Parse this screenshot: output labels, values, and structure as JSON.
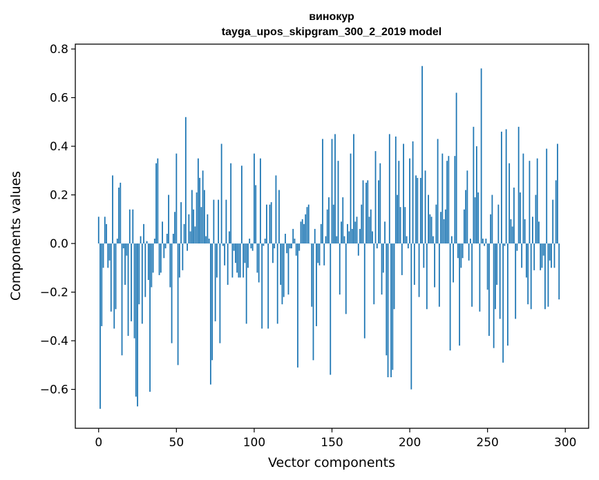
{
  "chart_data": {
    "type": "bar",
    "title": "винокур",
    "subtitle": "tayga_upos_skipgram_300_2_2019 model",
    "xlabel": "Vector components",
    "ylabel": "Components values",
    "xlim": [
      -15,
      315
    ],
    "ylim": [
      -0.76,
      0.82
    ],
    "xticks": [
      0,
      50,
      100,
      150,
      200,
      250,
      300
    ],
    "yticks": [
      -0.6,
      -0.4,
      -0.2,
      0.0,
      0.2,
      0.4,
      0.6,
      0.8
    ],
    "xtick_labels": [
      "0",
      "50",
      "100",
      "150",
      "200",
      "250",
      "300"
    ],
    "ytick_labels": [
      "−0.6",
      "−0.4",
      "−0.2",
      "0.0",
      "0.2",
      "0.4",
      "0.6",
      "0.8"
    ],
    "bar_color": "#1f77b4",
    "grid": false,
    "values": [
      0.11,
      -0.68,
      -0.34,
      -0.1,
      0.11,
      0.08,
      -0.1,
      -0.07,
      -0.28,
      0.28,
      -0.35,
      -0.27,
      0.02,
      0.23,
      0.25,
      -0.46,
      -0.02,
      -0.17,
      -0.05,
      -0.38,
      0.14,
      -0.32,
      0.14,
      -0.39,
      -0.63,
      -0.67,
      -0.25,
      0.03,
      -0.33,
      0.08,
      -0.22,
      0.01,
      -0.15,
      -0.61,
      -0.18,
      -0.12,
      0.02,
      0.33,
      0.35,
      -0.13,
      -0.12,
      0.09,
      -0.06,
      -0.02,
      0.04,
      0.2,
      -0.18,
      -0.41,
      0.04,
      0.13,
      0.37,
      -0.5,
      -0.14,
      0.17,
      -0.11,
      0.08,
      0.52,
      -0.03,
      0.12,
      0.05,
      0.22,
      0.14,
      0.07,
      0.21,
      0.35,
      0.27,
      0.15,
      0.3,
      0.22,
      0.03,
      0.12,
      0.02,
      -0.58,
      -0.48,
      0.18,
      -0.32,
      -0.14,
      0.18,
      -0.41,
      0.41,
      -0.01,
      -0.09,
      0.18,
      -0.17,
      0.05,
      0.33,
      -0.14,
      -0.03,
      -0.08,
      -0.12,
      -0.14,
      -0.14,
      0.32,
      -0.14,
      -0.08,
      -0.33,
      -0.1,
      0.02,
      -0.02,
      -0.03,
      0.37,
      0.24,
      -0.12,
      -0.16,
      0.35,
      -0.35,
      -0.01,
      0.02,
      0.16,
      -0.35,
      0.16,
      0.17,
      -0.08,
      -0.02,
      0.28,
      -0.33,
      0.22,
      -0.17,
      -0.25,
      -0.22,
      0.04,
      -0.04,
      -0.21,
      -0.02,
      -0.02,
      0.06,
      0.02,
      -0.05,
      -0.51,
      -0.03,
      0.09,
      0.1,
      0.08,
      0.12,
      0.15,
      0.16,
      0.0,
      -0.26,
      -0.48,
      0.06,
      -0.34,
      -0.08,
      -0.09,
      0.08,
      0.43,
      -0.09,
      0.03,
      0.14,
      0.19,
      -0.54,
      0.43,
      0.16,
      0.45,
      0.03,
      0.34,
      -0.21,
      0.09,
      0.19,
      0.03,
      -0.29,
      0.08,
      0.05,
      0.37,
      0.06,
      0.45,
      0.09,
      0.11,
      -0.05,
      0.06,
      0.16,
      0.26,
      -0.39,
      0.25,
      0.26,
      0.11,
      0.14,
      0.05,
      -0.25,
      0.38,
      -0.02,
      0.26,
      0.33,
      -0.21,
      -0.12,
      0.09,
      -0.46,
      -0.55,
      0.45,
      -0.55,
      -0.52,
      -0.27,
      0.44,
      0.2,
      0.34,
      0.15,
      -0.13,
      0.41,
      0.15,
      0.03,
      -0.02,
      0.35,
      -0.6,
      0.42,
      -0.17,
      0.28,
      0.27,
      -0.22,
      0.27,
      0.73,
      -0.1,
      0.3,
      -0.27,
      0.2,
      0.12,
      0.11,
      0.03,
      -0.18,
      0.16,
      0.43,
      -0.26,
      0.13,
      0.37,
      0.1,
      0.14,
      0.34,
      0.36,
      -0.44,
      0.03,
      -0.16,
      0.36,
      0.62,
      -0.06,
      -0.42,
      -0.1,
      -0.06,
      0.14,
      0.22,
      0.3,
      -0.07,
      0.02,
      -0.26,
      0.48,
      0.19,
      0.4,
      0.21,
      -0.28,
      0.72,
      0.02,
      -0.01,
      0.02,
      -0.19,
      -0.38,
      0.12,
      0.2,
      -0.43,
      -0.27,
      -0.17,
      0.16,
      -0.31,
      0.46,
      -0.49,
      -0.01,
      0.47,
      -0.42,
      0.33,
      0.1,
      0.07,
      0.23,
      -0.31,
      -0.03,
      0.48,
      0.21,
      -0.1,
      0.37,
      0.1,
      -0.14,
      -0.25,
      0.34,
      -0.27,
      0.11,
      -0.11,
      0.2,
      0.35,
      0.09,
      -0.11,
      -0.1,
      -0.05,
      -0.27,
      0.39,
      -0.26,
      -0.07,
      -0.1,
      0.18,
      -0.1,
      0.26,
      0.41,
      -0.23
    ]
  }
}
